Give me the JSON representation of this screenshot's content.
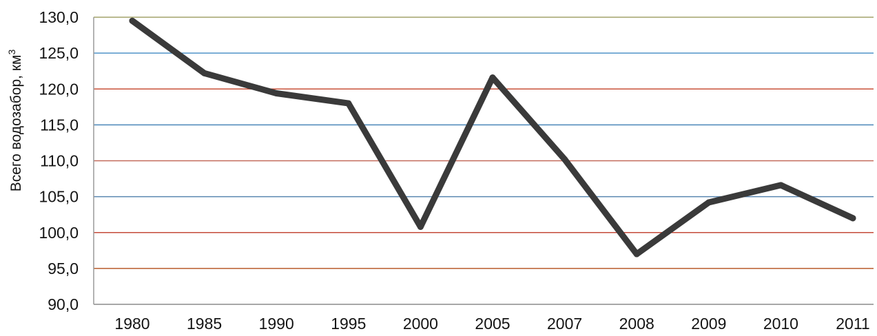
{
  "chart_data": {
    "type": "line",
    "title": "",
    "xlabel": "",
    "ylabel": "Всего водозабор, км",
    "ylabel_superscript": "3",
    "categories": [
      "1980",
      "1985",
      "1990",
      "1995",
      "2000",
      "2005",
      "2007",
      "2008",
      "2009",
      "2010",
      "2011"
    ],
    "series": [
      {
        "values": [
          129.5,
          122.2,
          119.4,
          118.0,
          100.8,
          121.6,
          110.2,
          97.0,
          104.2,
          106.6,
          102.0
        ]
      }
    ],
    "ylim": [
      90,
      130
    ],
    "yticks": [
      130,
      125,
      120,
      115,
      110,
      105,
      100,
      95,
      90
    ],
    "ytick_labels": [
      "130,0",
      "125,0",
      "120,0",
      "115,0",
      "110,0",
      "105,0",
      "100,0",
      "95,0",
      "90,0"
    ],
    "grid": true,
    "legend": "none",
    "line_color": "#3a3a3a",
    "gridline_colors": [
      "#a3a36a",
      "#4f93c8",
      "#c8523a",
      "#4a86b8",
      "#c26a5a",
      "#5a86b0",
      "#c44a3a",
      "#b85a2a",
      "#7c7cb0"
    ]
  }
}
